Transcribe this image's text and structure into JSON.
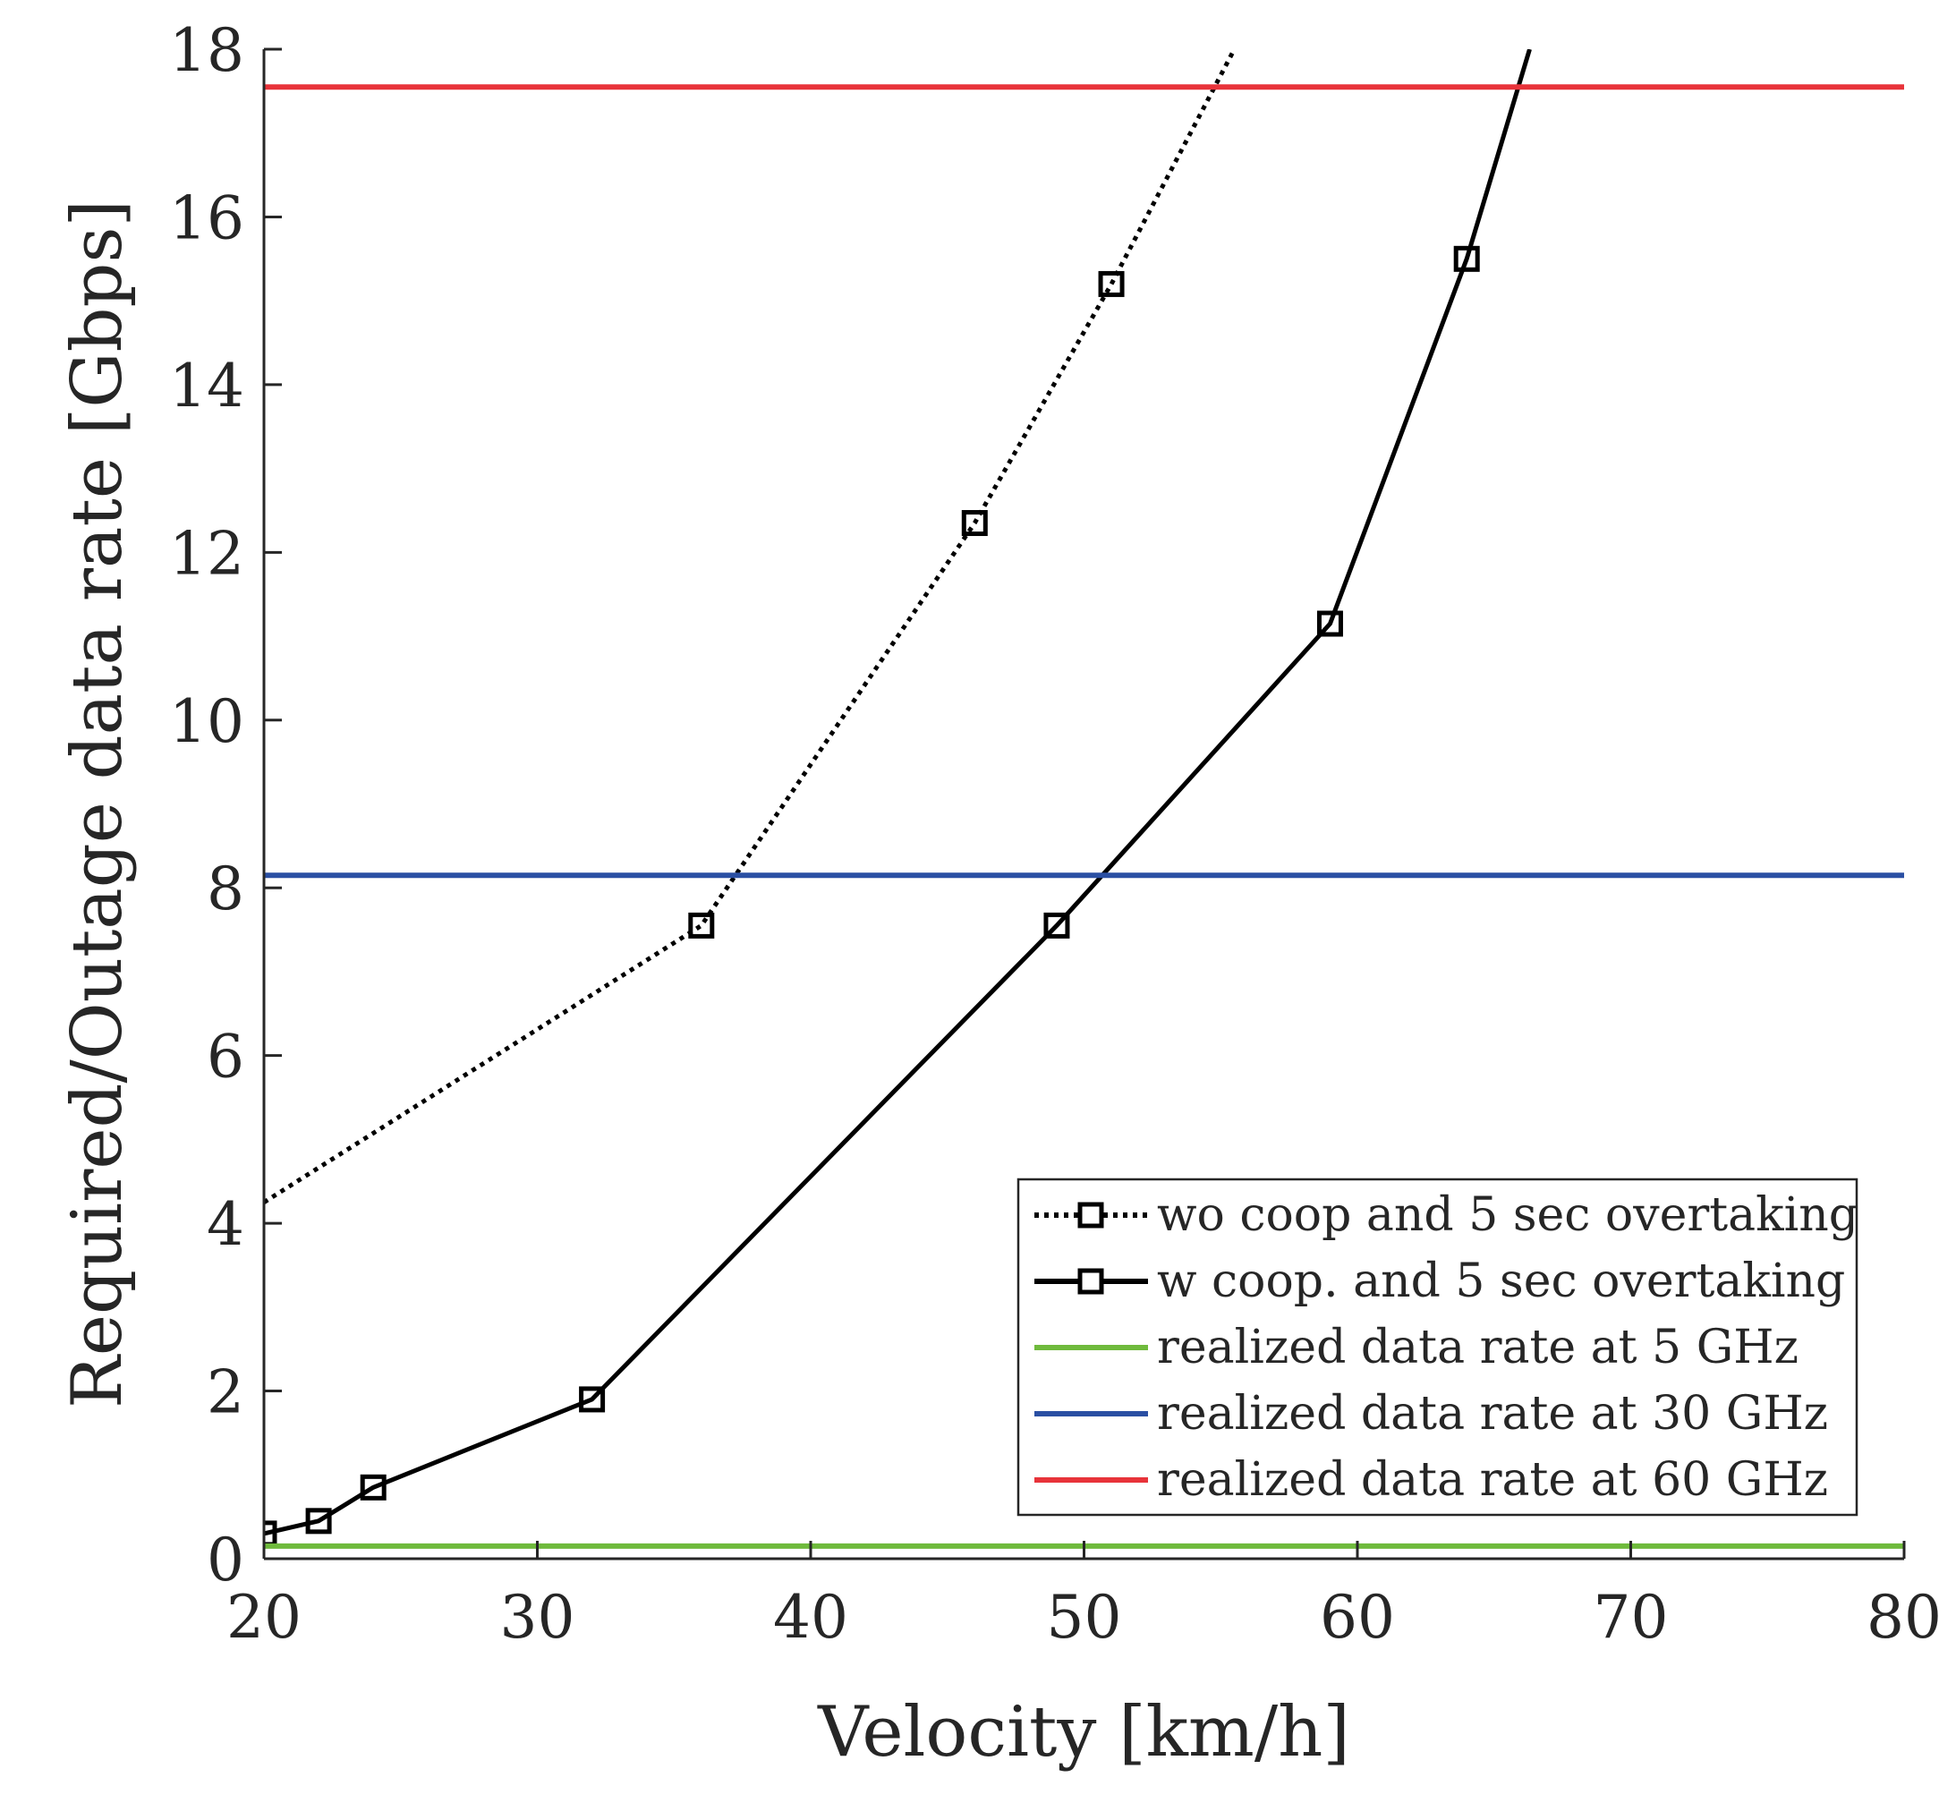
{
  "chart_data": {
    "type": "line",
    "title": "",
    "xlabel": "Velocity [km/h]",
    "ylabel": "Required/Outage data rate [Gbps]",
    "xlim": [
      20,
      80
    ],
    "ylim": [
      0,
      18
    ],
    "xticks": [
      20,
      30,
      40,
      50,
      60,
      70,
      80
    ],
    "yticks": [
      0,
      2,
      4,
      6,
      8,
      10,
      12,
      14,
      16,
      18
    ],
    "xtick_labels": [
      "20",
      "30",
      "40",
      "50",
      "60",
      "70",
      "80"
    ],
    "ytick_labels": [
      "0",
      "2",
      "4",
      "6",
      "8",
      "10",
      "12",
      "14",
      "16",
      "18"
    ],
    "grid": false,
    "legend_position": "bottom-right",
    "series": [
      {
        "name": "wo coop and 5 sec overtaking",
        "style": "dotted",
        "color": "#000000",
        "marker": "square",
        "line_x": [
          20,
          36,
          46,
          51,
          55.5
        ],
        "line_y": [
          4.25,
          7.55,
          12.35,
          15.2,
          18.0
        ],
        "marker_x": [
          36,
          46,
          51
        ],
        "marker_y": [
          7.55,
          12.35,
          15.2
        ]
      },
      {
        "name": "w coop. and 5 sec overtaking",
        "style": "solid",
        "color": "#000000",
        "marker": "square",
        "line_x": [
          20,
          22,
          24,
          32,
          49,
          59,
          64,
          66.3
        ],
        "line_y": [
          0.3,
          0.45,
          0.85,
          1.9,
          7.55,
          11.15,
          15.5,
          18.0
        ],
        "marker_x": [
          20,
          22,
          24,
          32,
          49,
          59,
          64
        ],
        "marker_y": [
          0.3,
          0.45,
          0.85,
          1.9,
          7.55,
          11.15,
          15.5
        ]
      },
      {
        "name": "realized data rate at 5 GHz",
        "style": "solid",
        "color": "#6fba3c",
        "marker": "none",
        "line_x": [
          20,
          80
        ],
        "line_y": [
          0.15,
          0.15
        ]
      },
      {
        "name": "realized data rate at 30 GHz",
        "style": "solid",
        "color": "#2a4fa3",
        "marker": "none",
        "line_x": [
          20,
          80
        ],
        "line_y": [
          8.15,
          8.15
        ]
      },
      {
        "name": "realized data rate at 60 GHz",
        "style": "solid",
        "color": "#e8333a",
        "marker": "none",
        "line_x": [
          20,
          80
        ],
        "line_y": [
          17.55,
          17.55
        ]
      }
    ]
  }
}
